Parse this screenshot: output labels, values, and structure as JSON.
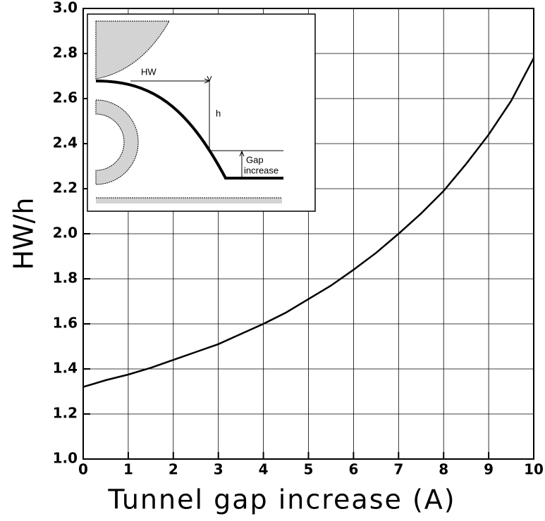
{
  "chart_data": {
    "type": "line",
    "x_label": "Tunnel gap increase (A)",
    "y_label": "HW/h",
    "annotations": [
      "HW",
      "h",
      "Gap",
      "increase"
    ],
    "series": [
      {
        "color": "#000000",
        "x": [
          0,
          0.5,
          1,
          1.5,
          2,
          2.5,
          3,
          3.5,
          4,
          4.5,
          5,
          5.5,
          6,
          6.5,
          7,
          7.5,
          8,
          8.5,
          9,
          9.5,
          10
        ],
        "values": [
          1.32,
          1.35,
          1.375,
          1.405,
          1.44,
          1.475,
          1.51,
          1.555,
          1.6,
          1.65,
          1.71,
          1.77,
          1.84,
          1.915,
          2.0,
          2.09,
          2.19,
          2.31,
          2.44,
          2.59,
          2.78
        ]
      }
    ],
    "xlim": [
      0,
      10
    ],
    "xticks": [
      0,
      1,
      2,
      3,
      4,
      5,
      6,
      7,
      8,
      9,
      10
    ],
    "ylim": [
      1,
      3
    ],
    "yticks": [
      {
        "value": 1,
        "label": "1.0"
      },
      1.2,
      1.4,
      1.6,
      1.8,
      {
        "value": 2,
        "label": "2.0"
      },
      2.2,
      2.4,
      2.6,
      2.8,
      {
        "value": 3,
        "label": "3.0"
      }
    ],
    "grid": true
  }
}
